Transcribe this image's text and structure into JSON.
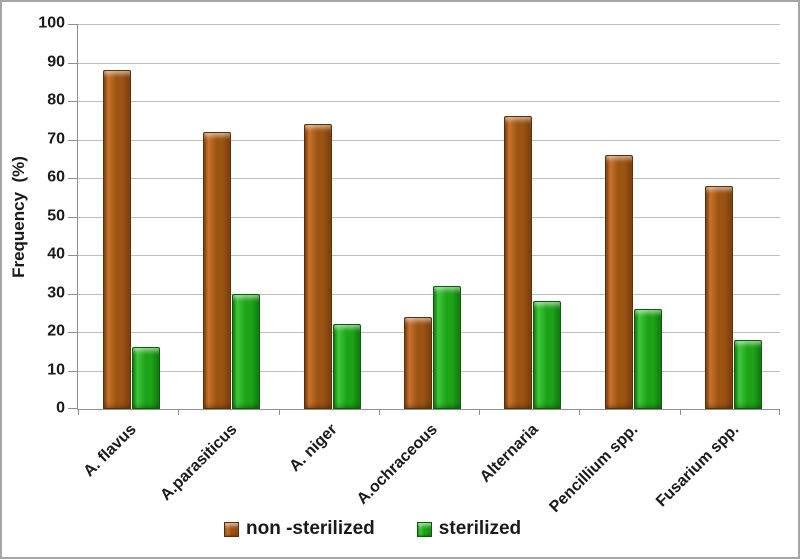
{
  "chart_data": {
    "type": "bar",
    "title": "",
    "ylabel": "Frequency  (%)",
    "xlabel": "",
    "ylim": [
      0,
      100
    ],
    "ytick_step": 10,
    "yticks": [
      0,
      10,
      20,
      30,
      40,
      50,
      60,
      70,
      80,
      90,
      100
    ],
    "grid": "horizontal",
    "legend_position": "bottom",
    "categories": [
      "A. flavus",
      "A.parasiticus",
      "A. niger",
      "A.ochraceous",
      "Alternaria",
      "Pencillium spp.",
      "Fusarium spp."
    ],
    "series": [
      {
        "name": "non -sterilized",
        "color": "#9C5413",
        "color_light": "#C8732E",
        "color_dark": "#7A3C0B",
        "border": "#5C2F06",
        "values": [
          88,
          72,
          74,
          24,
          76,
          66,
          58
        ]
      },
      {
        "name": "sterilized",
        "color": "#1EA318",
        "color_light": "#3DC83A",
        "color_dark": "#0F7A0E",
        "border": "#0A5C08",
        "values": [
          16,
          30,
          22,
          32,
          28,
          26,
          18
        ]
      }
    ]
  },
  "colors": {
    "text": "#1A1A1A",
    "gridline": "#BFBFBF",
    "axis": "#8E8E8E",
    "figure_border": "#A6A6A6",
    "background": "#FFFFFF"
  }
}
